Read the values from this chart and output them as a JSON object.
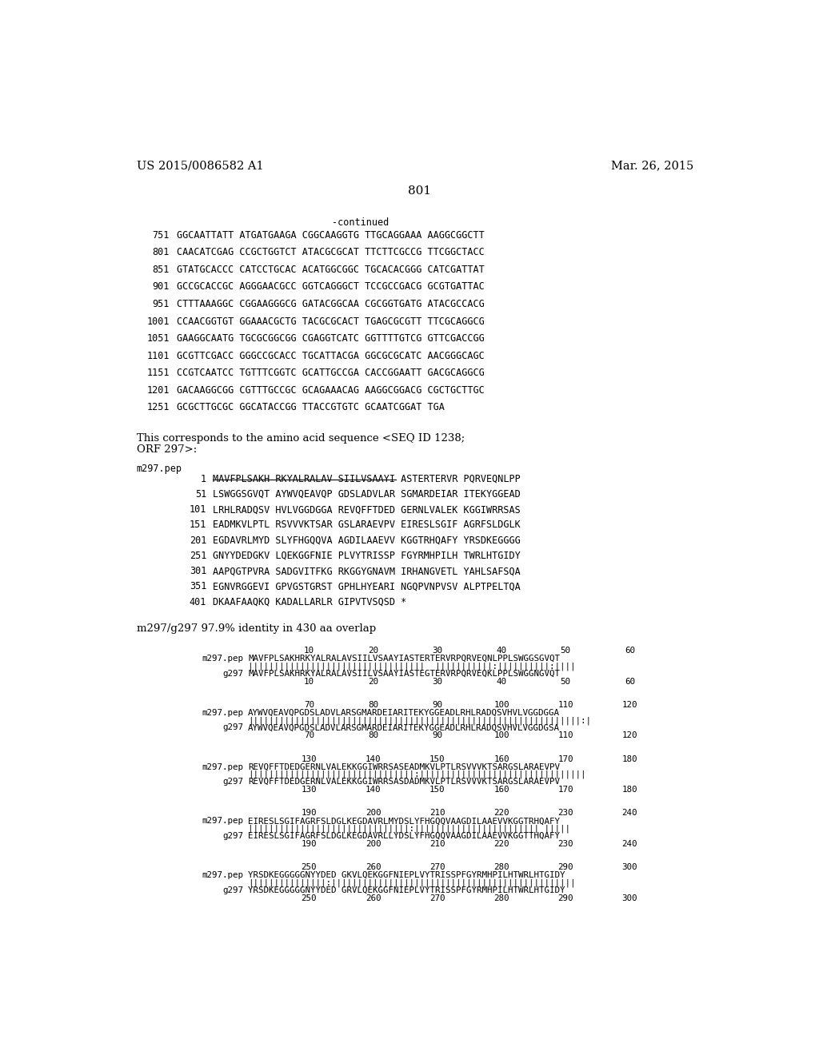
{
  "patent_number": "US 2015/0086582 A1",
  "patent_date": "Mar. 26, 2015",
  "page_number": "801",
  "continued_label": "-continued",
  "background_color": "#ffffff",
  "dna_lines": [
    [
      "751",
      "GGCAATTATT ATGATGAAGA CGGCAAGGTG TTGCAGGAAA AAGGCGGCTT"
    ],
    [
      "801",
      "CAACATCGAG CCGCTGGTCT ATACGCGCAT TTCTTCGCCG TTCGGCTACC"
    ],
    [
      "851",
      "GTATGCACCC CATCCTGCAC ACATGGCGGC TGCACACGGG CATCGATTAT"
    ],
    [
      "901",
      "GCCGCACCGC AGGGAACGCC GGTCAGGGCT TCCGCCGACG GCGTGATTAC"
    ],
    [
      "951",
      "CTTTAAAGGC CGGAAGGGCG GATACGGCAA CGCGGTGATG ATACGCCACG"
    ],
    [
      "1001",
      "CCAACGGTGT GGAAACGCTG TACGCGCACT TGAGCGCGTT TTCGCAGGCG"
    ],
    [
      "1051",
      "GAAGGCAATG TGCGCGGCGG CGAGGTCATC GGTTTTGTCG GTTCGACCGG"
    ],
    [
      "1101",
      "GCGTTCGACC GGGCCGCACC TGCATTACGA GGCGCGCATC AACGGGCAGC"
    ],
    [
      "1151",
      "CCGTCAATCC TGTTTCGGTC GCATTGCCGA CACCGGAATT GACGCAGGCG"
    ],
    [
      "1201",
      "GACAAGGCGG CGTTTGCCGC GCAGAAACAG AAGGCGGACG CGCTGCTTGC"
    ],
    [
      "1251",
      "GCGCTTGCGC GGCATACCGG TTACCGTGTC GCAATCGGAT TGA"
    ]
  ],
  "text_line1": "This corresponds to the amino acid sequence <SEQ ID 1238;",
  "text_line2": "ORF 297>:",
  "pep_label": "m297.pep",
  "pep_lines": [
    [
      "1",
      "MAVFPLSAKH RKYALRALAV SIILVSAAYI ASTERTERVR PQRVEQNLPP"
    ],
    [
      "51",
      "LSWGGSGVQT AYWVQEAVQP GDSLADVLAR SGMARDEIAR ITEKYGGEAD"
    ],
    [
      "101",
      "LRHLRADQSV HVLVGGDGGA REVQFFTDED GERNLVALEK KGGIWRRSAS"
    ],
    [
      "151",
      "EADMKVLPTL RSVVVKTSAR GSLARAEVPV EIRESLSGIF AGRFSLDGLK"
    ],
    [
      "201",
      "EGDAVRLMYD SLYFHGQQVA AGDILAAEVV KGGTRHQAFY YRSDKEGGGG"
    ],
    [
      "251",
      "GNYYDEDGKV LQEKGGFNIE PLVYTRISSP FGYRMHPILH TWRLHTGIDY"
    ],
    [
      "301",
      "AAPQGTPVRA SADGVITFKG RKGGYGNAVM IRHANGVETL YAHLSAFSQA"
    ],
    [
      "351",
      "EGNVRGGEVI GPVGSTGRST GPHLHYEARI NGQPVNPVSV ALPTPELTQA"
    ],
    [
      "401",
      "DKAAFAAQKQ KADALLARLR GIPVTVSQSD *"
    ]
  ],
  "identity_label": "m297/g297 97.9% identity in 430 aa overlap",
  "alignment_blocks": [
    {
      "top_nums": [
        "10",
        "20",
        "30",
        "40",
        "50",
        "60"
      ],
      "m297_seq": "MAVFPLSAKHRKYALRALAVSIILVSAAYIASTERTERVRPQRVEQNLPPLSWGGSGVQT",
      "match_str": "||||||||||||||||||||||||||||||||||  |||||||||||:||||||||||:||||",
      "g297_seq": "MAVFPLSAKHRKYALRALAVSIILVSAAYIASTEGTERVRPQRVEQKLPPLSWGGNGVQT",
      "bot_nums": [
        "10",
        "20",
        "30",
        "40",
        "50",
        "60"
      ]
    },
    {
      "top_nums": [
        "70",
        "80",
        "90",
        "100",
        "110",
        "120"
      ],
      "m297_seq": "AYWVQEAVQPGDSLADVLARSGMARDEIARITEKYGGEADLRHLRADQSVHVLVGGDGGA",
      "match_str": "||||||||||||||||||||||||||||||||||||||||||||||||||||||||||||||||:|",
      "g297_seq": "AYWVQEAVQPGDSLADVLARSGMARDEIARITEKYGGEADLRHLRADQSVHVLVGGDGSA",
      "bot_nums": [
        "70",
        "80",
        "90",
        "100",
        "110",
        "120"
      ]
    },
    {
      "top_nums": [
        "130",
        "140",
        "150",
        "160",
        "170",
        "180"
      ],
      "m297_seq": "REVQFFTDEDGERNLVALEKKGGIWRRSASEADMKVLPTLRSVVVKTSARGSLARAEVPV",
      "match_str": "||||||||||||||||||||||||||||||||:||||||||||||||||||||||||||||||||",
      "g297_seq": "REVQFFTDEDGERNLVALEKKGGIWRRSASDADMKVLPTLRSVVVKTSARGSLARAEVPV",
      "bot_nums": [
        "130",
        "140",
        "150",
        "160",
        "170",
        "180"
      ]
    },
    {
      "top_nums": [
        "190",
        "200",
        "210",
        "220",
        "230",
        "240"
      ],
      "m297_seq": "EIRESLSGIFAGRFSLDGLKEGDAVRLMYDSLYFHGQQVAAGDILAAEVVKGGTRHQAFY",
      "match_str": "|||||||||||||||||||||||||||||||:|||||||||||||||||||||||| |||||",
      "g297_seq": "EIRESLSGIFAGRFSLDGLKEGDAVRLLYDSLYFHGQQVAAGDILAAEVVKGGTTHQAFY",
      "bot_nums": [
        "190",
        "200",
        "210",
        "220",
        "230",
        "240"
      ]
    },
    {
      "top_nums": [
        "250",
        "260",
        "270",
        "280",
        "290",
        "300"
      ],
      "m297_seq": "YRSDKEGGGGGNYYDED GKVLQEKGGFNIEPLVYTRISSPFGYRMHPILHTWRLHTGIDY",
      "match_str": "|||||||||||||||:|||||||||||||||||||||||||||||||||||||||||||||||",
      "g297_seq": "YRSDKEGGGGGNYYDED GRVLQEKGGFNIEPLVYTRISSPFGYRMHPILHTWRLHTGIDY",
      "bot_nums": [
        "250",
        "260",
        "270",
        "280",
        "290",
        "300"
      ]
    }
  ]
}
